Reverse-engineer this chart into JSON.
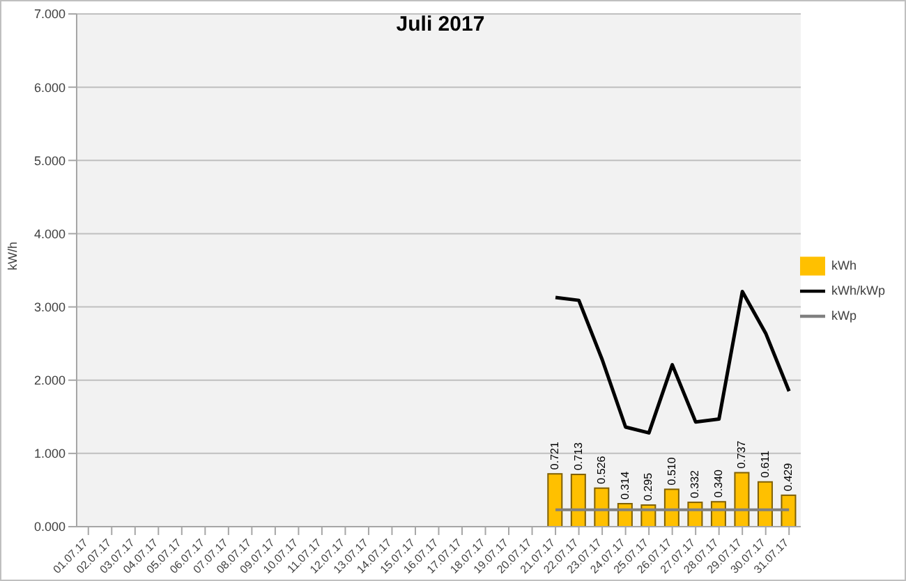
{
  "chart_data": {
    "type": "bar",
    "title": "Juli 2017",
    "ylabel": "kW/h",
    "categories": [
      "01.07.17",
      "02.07.17",
      "03.07.17",
      "04.07.17",
      "05.07.17",
      "06.07.17",
      "07.07.17",
      "08.07.17",
      "09.07.17",
      "10.07.17",
      "11.07.17",
      "12.07.17",
      "13.07.17",
      "14.07.17",
      "15.07.17",
      "16.07.17",
      "17.07.17",
      "18.07.17",
      "19.07.17",
      "20.07.17",
      "21.07.17",
      "22.07.17",
      "23.07.17",
      "24.07.17",
      "25.07.17",
      "26.07.17",
      "27.07.17",
      "28.07.17",
      "29.07.17",
      "30.07.17",
      "31.07.17"
    ],
    "series": [
      {
        "name": "kWh",
        "color": "#ffc000",
        "values": [
          null,
          null,
          null,
          null,
          null,
          null,
          null,
          null,
          null,
          null,
          null,
          null,
          null,
          null,
          null,
          null,
          null,
          null,
          null,
          null,
          0.721,
          0.713,
          0.526,
          0.314,
          0.295,
          0.51,
          0.332,
          0.34,
          0.737,
          0.611,
          0.429
        ],
        "value_labels": [
          null,
          null,
          null,
          null,
          null,
          null,
          null,
          null,
          null,
          null,
          null,
          null,
          null,
          null,
          null,
          null,
          null,
          null,
          null,
          null,
          "0.721",
          "0.713",
          "0.526",
          "0.314",
          "0.295",
          "0.510",
          "0.332",
          "0.340",
          "0.737",
          "0.611",
          "0.429"
        ]
      },
      {
        "name": "kWh/kWp",
        "type": "line",
        "color": "#000000",
        "values": [
          null,
          null,
          null,
          null,
          null,
          null,
          null,
          null,
          null,
          null,
          null,
          null,
          null,
          null,
          null,
          null,
          null,
          null,
          null,
          null,
          3.13,
          3.09,
          2.28,
          1.36,
          1.28,
          2.21,
          1.43,
          1.47,
          3.21,
          2.64,
          1.85
        ]
      },
      {
        "name": "kWp",
        "type": "line",
        "color": "#808080",
        "values": [
          null,
          null,
          null,
          null,
          null,
          null,
          null,
          null,
          null,
          null,
          null,
          null,
          null,
          null,
          null,
          null,
          null,
          null,
          null,
          null,
          0.23,
          0.23,
          0.23,
          0.23,
          0.23,
          0.23,
          0.23,
          0.23,
          0.23,
          0.23,
          0.23
        ]
      }
    ],
    "ylim": [
      0,
      7
    ],
    "yticks": [
      {
        "value": 0,
        "label": "0.000"
      },
      {
        "value": 1,
        "label": "1.000"
      },
      {
        "value": 2,
        "label": "2.000"
      },
      {
        "value": 3,
        "label": "3.000"
      },
      {
        "value": 4,
        "label": "4.000"
      },
      {
        "value": 5,
        "label": "5.000"
      },
      {
        "value": 6,
        "label": "6.000"
      },
      {
        "value": 7,
        "label": "7.000"
      }
    ],
    "grid": "y",
    "legend": "right",
    "marker": "none"
  }
}
